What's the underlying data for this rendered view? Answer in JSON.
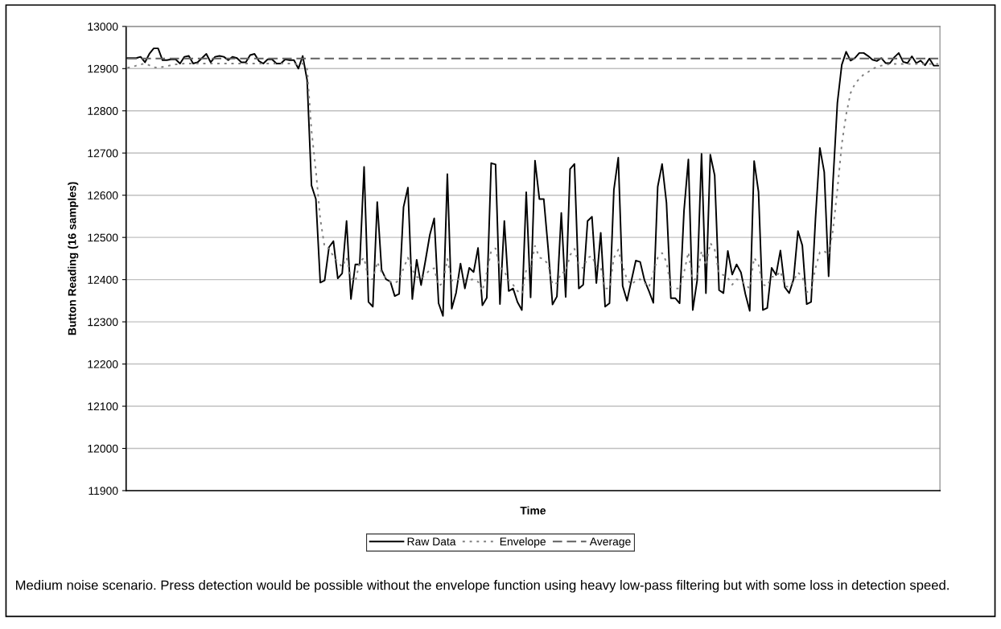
{
  "chart_data": {
    "type": "line",
    "xlabel": "Time",
    "ylabel": "Button Reading (16 samples)",
    "categories": [
      null,
      null,
      null,
      null,
      null,
      null,
      null,
      null,
      null,
      null,
      null,
      null,
      null,
      null,
      null,
      null,
      null,
      null,
      null,
      null,
      null,
      null,
      null,
      null,
      null,
      null,
      null,
      null,
      null,
      null,
      null,
      null,
      null,
      null,
      null,
      null,
      null,
      null,
      null,
      null,
      null,
      null,
      null,
      null,
      null,
      null,
      null,
      null,
      null,
      null,
      null,
      null,
      null,
      null,
      null,
      null,
      null,
      null,
      null,
      null,
      null,
      null,
      null,
      null,
      null,
      null,
      null,
      null,
      null,
      null,
      null,
      null,
      null,
      null,
      null,
      null,
      null,
      null,
      null,
      null,
      null,
      null,
      null,
      null,
      null,
      null,
      null,
      null,
      null,
      null,
      null,
      null,
      null,
      null,
      null,
      null,
      null,
      null,
      null,
      null,
      null,
      null,
      null,
      null,
      null,
      null,
      null,
      null,
      null,
      null,
      null,
      null,
      null,
      null,
      null,
      null,
      null,
      null,
      null,
      null,
      null,
      null,
      null,
      null,
      null,
      null,
      null,
      null,
      null,
      null,
      null,
      null,
      null,
      null,
      null,
      null,
      null,
      null,
      null,
      null,
      null,
      null,
      null,
      null,
      null,
      null,
      null,
      null,
      null,
      null,
      null,
      null,
      null,
      null,
      null,
      null,
      null,
      null,
      null,
      null,
      null,
      null,
      null,
      null,
      null,
      null,
      null,
      null,
      null,
      null,
      null,
      null,
      null,
      null,
      null,
      null,
      null,
      null,
      null,
      null,
      null,
      null,
      null,
      null,
      null,
      null
    ],
    "series": [
      {
        "name": "Raw Data",
        "color": "#000000",
        "line_style": "solid",
        "values": [
          12925,
          12925,
          12925,
          12928,
          12915,
          12935,
          12948,
          12948,
          12920,
          12920,
          12922,
          12922,
          12912,
          12928,
          12930,
          12912,
          12915,
          12925,
          12935,
          12915,
          12928,
          12930,
          12928,
          12920,
          12928,
          12925,
          12915,
          12915,
          12932,
          12935,
          12918,
          12912,
          12922,
          12922,
          12912,
          12912,
          12922,
          12920,
          12920,
          12900,
          12930,
          12873,
          12623,
          12591,
          12393,
          12398,
          12477,
          12491,
          12403,
          12415,
          12539,
          12354,
          12436,
          12436,
          12667,
          12347,
          12336,
          12584,
          12423,
          12401,
          12395,
          12361,
          12366,
          12572,
          12618,
          12354,
          12447,
          12387,
          12445,
          12506,
          12545,
          12344,
          12314,
          12650,
          12331,
          12369,
          12438,
          12379,
          12428,
          12418,
          12475,
          12339,
          12357,
          12676,
          12673,
          12342,
          12539,
          12373,
          12379,
          12347,
          12328,
          12607,
          12358,
          12682,
          12591,
          12591,
          12474,
          12341,
          12360,
          12558,
          12359,
          12662,
          12674,
          12379,
          12388,
          12539,
          12549,
          12392,
          12511,
          12336,
          12344,
          12613,
          12689,
          12385,
          12350,
          12398,
          12445,
          12442,
          12398,
          12373,
          12345,
          12620,
          12674,
          12582,
          12356,
          12356,
          12344,
          12563,
          12685,
          12328,
          12398,
          12698,
          12368,
          12696,
          12647,
          12375,
          12368,
          12468,
          12412,
          12436,
          12417,
          12366,
          12326,
          12681,
          12608,
          12328,
          12333,
          12428,
          12411,
          12469,
          12382,
          12368,
          12401,
          12515,
          12481,
          12342,
          12347,
          12544,
          12712,
          12655,
          12408,
          12632,
          12819,
          12909,
          12940,
          12919,
          12925,
          12937,
          12937,
          12930,
          12921,
          12918,
          12925,
          12913,
          12913,
          12927,
          12937,
          12916,
          12913,
          12929,
          12913,
          12919,
          12908,
          12924,
          12907,
          12907
        ]
      },
      {
        "name": "Envelope",
        "color": "#808080",
        "line_style": "dotted",
        "values": [
          12902,
          12904,
          12907,
          12910,
          12912,
          12908,
          12903,
          12902,
          12904,
          12906,
          12908,
          12910,
          12911,
          12912,
          12912,
          12912,
          12912,
          12912,
          12912,
          12912,
          12912,
          12912,
          12912,
          12912,
          12912,
          12912,
          12912,
          12912,
          12912,
          12912,
          12912,
          12912,
          12912,
          12912,
          12912,
          12912,
          12912,
          12912,
          12912,
          12910,
          12912,
          12899,
          12753,
          12658,
          12544,
          12477,
          12474,
          12455,
          12442,
          12430,
          12452,
          12404,
          12395,
          12442,
          12452,
          12401,
          12401,
          12442,
          12417,
          12404,
          12395,
          12392,
          12398,
          12427,
          12452,
          12423,
          12407,
          12401,
          12412,
          12423,
          12427,
          12385,
          12392,
          12449,
          12398,
          12398,
          12403,
          12398,
          12399,
          12401,
          12395,
          12373,
          12417,
          12468,
          12474,
          12430,
          12420,
          12398,
          12388,
          12373,
          12366,
          12423,
          12430,
          12480,
          12452,
          12449,
          12436,
          12388,
          12392,
          12417,
          12417,
          12458,
          12473,
          12436,
          12427,
          12452,
          12456,
          12430,
          12430,
          12379,
          12379,
          12452,
          12471,
          12430,
          12401,
          12388,
          12398,
          12401,
          12392,
          12382,
          12417,
          12452,
          12463,
          12442,
          12382,
          12379,
          12379,
          12417,
          12465,
          12398,
          12404,
          12468,
          12433,
          12487,
          12471,
          12414,
          12411,
          12404,
          12388,
          12401,
          12398,
          12388,
          12379,
          12452,
          12436,
          12388,
          12385,
          12407,
          12407,
          12420,
          12385,
          12382,
          12398,
          12417,
          12407,
          12370,
          12376,
          12427,
          12465,
          12468,
          12458,
          12518,
          12613,
          12721,
          12791,
          12842,
          12864,
          12876,
          12886,
          12892,
          12899,
          12904,
          12907,
          12909,
          12911,
          12911,
          12911,
          12911,
          12911,
          12911,
          12911,
          12911,
          12911,
          12911,
          12911,
          12911
        ]
      },
      {
        "name": "Average",
        "color": "#606060",
        "line_style": "dashed",
        "values": [
          12924,
          12924,
          12924,
          12924,
          12924,
          12924,
          12924,
          12924,
          12924,
          12924,
          12924,
          12924,
          12924,
          12924,
          12924,
          12924,
          12924,
          12924,
          12924,
          12924,
          12924,
          12924,
          12924,
          12924,
          12924,
          12924,
          12924,
          12924,
          12924,
          12924,
          12924,
          12924,
          12924,
          12924,
          12924,
          12924,
          12924,
          12924,
          12924,
          12924,
          12924,
          12924,
          12924,
          12924,
          12924,
          12924,
          12924,
          12924,
          12924,
          12924,
          12924,
          12924,
          12924,
          12924,
          12924,
          12924,
          12924,
          12924,
          12924,
          12924,
          12924,
          12924,
          12924,
          12924,
          12924,
          12924,
          12924,
          12924,
          12924,
          12924,
          12924,
          12924,
          12924,
          12924,
          12924,
          12924,
          12924,
          12924,
          12924,
          12924,
          12924,
          12924,
          12924,
          12924,
          12924,
          12924,
          12924,
          12924,
          12924,
          12924,
          12924,
          12924,
          12924,
          12924,
          12924,
          12924,
          12924,
          12924,
          12924,
          12924,
          12924,
          12924,
          12924,
          12924,
          12924,
          12924,
          12924,
          12924,
          12924,
          12924,
          12924,
          12924,
          12924,
          12924,
          12924,
          12924,
          12924,
          12924,
          12924,
          12924,
          12924,
          12924,
          12924,
          12924,
          12924,
          12924,
          12924,
          12924,
          12924,
          12924,
          12924,
          12924,
          12924,
          12924,
          12924,
          12924,
          12924,
          12924,
          12924,
          12924,
          12924,
          12924,
          12924,
          12924,
          12924,
          12924,
          12924,
          12924,
          12924,
          12924,
          12924,
          12924,
          12924,
          12924,
          12924,
          12924,
          12924,
          12924,
          12924,
          12924,
          12924,
          12924,
          12924,
          12924,
          12924,
          12924,
          12924,
          12924,
          12924,
          12924,
          12924,
          12924,
          12924,
          12924,
          12924,
          12924,
          12924,
          12924,
          12924,
          12924,
          12924,
          12924,
          12924,
          12924,
          12924,
          12924
        ]
      }
    ],
    "ylim": [
      11900,
      13000
    ],
    "yticks": [
      11900,
      12000,
      12100,
      12200,
      12300,
      12400,
      12500,
      12600,
      12700,
      12800,
      12900,
      13000
    ],
    "grid": "y",
    "legend": "bottom",
    "tick_labels": "y",
    "annotations": [
      "Medium noise scenario. Press detection would be possible without the envelope function using heavy low-pass filtering but with some loss in detection speed."
    ]
  }
}
